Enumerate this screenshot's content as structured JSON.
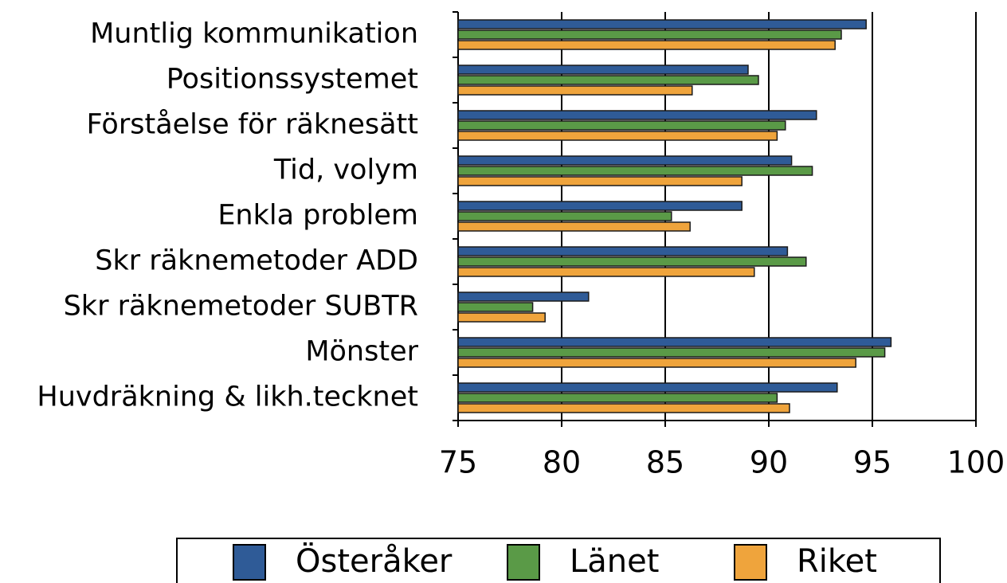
{
  "chart_data": {
    "type": "barh",
    "categories": [
      "Muntlig kommunikation",
      "Positionssystemet",
      "Förståelse för räknesätt",
      "Tid, volym",
      "Enkla problem",
      "Skr räknemetoder ADD",
      "Skr räknemetoder SUBTR",
      "Mönster",
      "Huvdräkning & likh.tecknet"
    ],
    "series": [
      {
        "name": "Österåker",
        "color": "#2f5b97",
        "values": [
          94.7,
          89.0,
          92.3,
          91.1,
          88.7,
          90.9,
          81.3,
          95.9,
          93.3
        ]
      },
      {
        "name": "Länet",
        "color": "#5a9a47",
        "values": [
          93.5,
          89.5,
          90.8,
          92.1,
          85.3,
          91.8,
          78.6,
          95.6,
          90.4
        ]
      },
      {
        "name": "Riket",
        "color": "#efa43c",
        "values": [
          93.2,
          86.3,
          90.4,
          88.7,
          86.2,
          89.3,
          79.2,
          94.2,
          91.0
        ]
      }
    ],
    "xlim": [
      75,
      100
    ],
    "xticks": [
      75,
      80,
      85,
      90,
      95,
      100
    ],
    "grid": true,
    "legend": "bottom"
  }
}
